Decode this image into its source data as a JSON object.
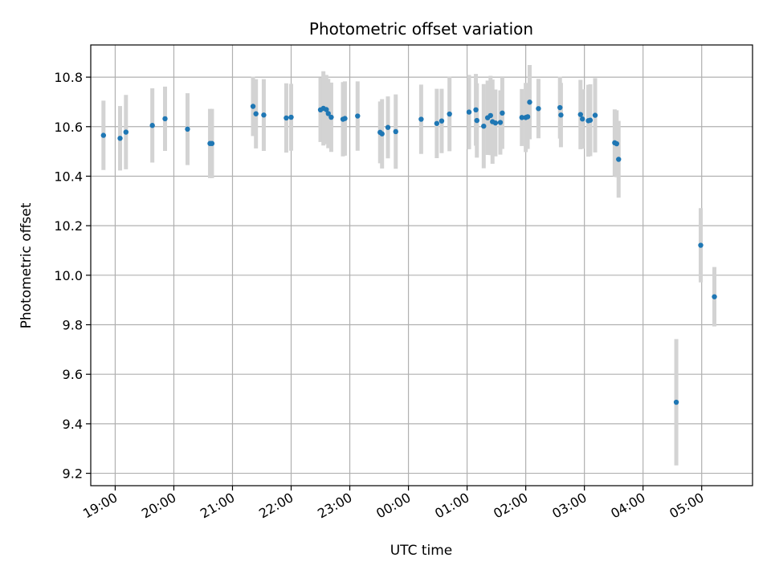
{
  "chart_data": {
    "type": "scatter",
    "title": "Photometric offset variation",
    "xlabel": "UTC time",
    "ylabel": "Photometric offset",
    "grid": true,
    "colors": {
      "points": "#1f77b4",
      "errorbars": "#d3d3d3",
      "grid": "#b0b0b0"
    },
    "xlim": [
      "18:35",
      "05:52"
    ],
    "ylim": [
      9.15,
      10.93
    ],
    "x_ticks": [
      "19:00",
      "20:00",
      "21:00",
      "22:00",
      "23:00",
      "00:00",
      "01:00",
      "02:00",
      "03:00",
      "04:00",
      "05:00"
    ],
    "y_ticks": [
      "9.2",
      "9.4",
      "9.6",
      "9.8",
      "10.0",
      "10.2",
      "10.4",
      "10.6",
      "10.8"
    ],
    "series": [
      {
        "x": [
          "18:48",
          "19:05",
          "19:11",
          "19:38",
          "19:51",
          "20:14",
          "20:37",
          "20:39",
          "21:21",
          "21:24",
          "21:32",
          "21:55",
          "22:00",
          "22:30",
          "22:33",
          "22:36",
          "22:38",
          "22:41",
          "22:53",
          "22:55",
          "23:08",
          "23:31",
          "23:33",
          "23:39",
          "23:47",
          "00:13",
          "00:29",
          "00:34",
          "00:42",
          "01:02",
          "01:09",
          "01:10",
          "01:17",
          "01:21",
          "01:24",
          "01:26",
          "01:29",
          "01:34",
          "01:36",
          "01:56",
          "02:00",
          "02:02",
          "02:04",
          "02:13",
          "02:35",
          "02:36",
          "02:56",
          "02:58",
          "03:04",
          "03:06",
          "03:11",
          "03:31",
          "03:33",
          "03:35",
          "04:34",
          "04:59",
          "05:13"
        ],
        "y": [
          10.565,
          10.553,
          10.578,
          10.605,
          10.632,
          10.59,
          10.532,
          10.532,
          10.682,
          10.652,
          10.647,
          10.635,
          10.638,
          10.668,
          10.674,
          10.669,
          10.653,
          10.638,
          10.63,
          10.633,
          10.643,
          10.577,
          10.571,
          10.597,
          10.58,
          10.63,
          10.613,
          10.623,
          10.651,
          10.659,
          10.668,
          10.625,
          10.602,
          10.636,
          10.645,
          10.62,
          10.615,
          10.617,
          10.655,
          10.637,
          10.637,
          10.64,
          10.699,
          10.673,
          10.677,
          10.647,
          10.649,
          10.631,
          10.624,
          10.626,
          10.646,
          10.535,
          10.531,
          10.468,
          9.487,
          10.121,
          9.913
        ],
        "err": [
          0.14,
          0.13,
          0.15,
          0.15,
          0.13,
          0.145,
          0.14,
          0.14,
          0.12,
          0.14,
          0.145,
          0.14,
          0.135,
          0.13,
          0.15,
          0.14,
          0.14,
          0.14,
          0.15,
          0.15,
          0.14,
          0.125,
          0.14,
          0.125,
          0.15,
          0.14,
          0.14,
          0.13,
          0.15,
          0.15,
          0.145,
          0.15,
          0.17,
          0.15,
          0.16,
          0.17,
          0.135,
          0.13,
          0.145,
          0.115,
          0.14,
          0.13,
          0.15,
          0.12,
          0.125,
          0.13,
          0.14,
          0.12,
          0.145,
          0.145,
          0.15,
          0.135,
          0.135,
          0.155,
          0.255,
          0.15,
          0.12
        ]
      }
    ]
  }
}
